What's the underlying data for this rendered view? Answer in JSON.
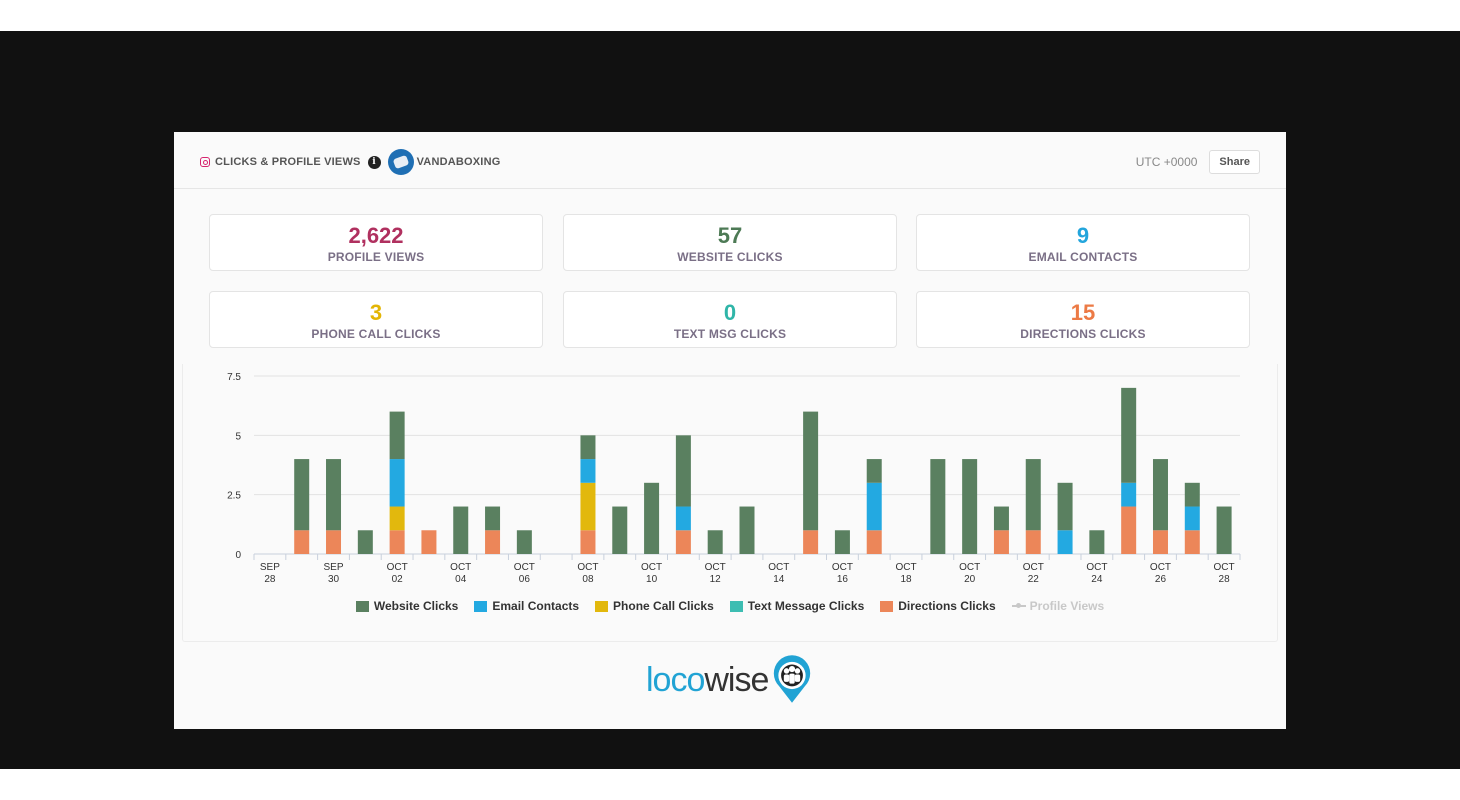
{
  "header": {
    "title": "CLICKS & PROFILE VIEWS",
    "account": "VANDABOXING",
    "timezone": "UTC +0000",
    "share_label": "Share",
    "icons": [
      "instagram-icon",
      "info-icon",
      "avatar"
    ]
  },
  "stats": [
    {
      "value": "2,622",
      "label": "PROFILE VIEWS",
      "color": "#b0305f"
    },
    {
      "value": "57",
      "label": "WEBSITE CLICKS",
      "color": "#4d7a55"
    },
    {
      "value": "9",
      "label": "EMAIL CONTACTS",
      "color": "#23a5dc"
    },
    {
      "value": "3",
      "label": "PHONE CALL CLICKS",
      "color": "#e3b505"
    },
    {
      "value": "0",
      "label": "TEXT MSG CLICKS",
      "color": "#2fb5a8"
    },
    {
      "value": "15",
      "label": "DIRECTIONS CLICKS",
      "color": "#ec7a45"
    }
  ],
  "chart_data": {
    "type": "bar",
    "stacked": true,
    "ylim": [
      0,
      7.5
    ],
    "yticks": [
      "0",
      "2.5",
      "5",
      "7.5"
    ],
    "grid": true,
    "legend_position": "bottom",
    "categories": [
      "Sep 28",
      "Sep 29",
      "Sep 30",
      "Oct 01",
      "Oct 02",
      "Oct 03",
      "Oct 04",
      "Oct 05",
      "Oct 06",
      "Oct 07",
      "Oct 08",
      "Oct 09",
      "Oct 10",
      "Oct 11",
      "Oct 12",
      "Oct 13",
      "Oct 14",
      "Oct 15",
      "Oct 16",
      "Oct 17",
      "Oct 18",
      "Oct 19",
      "Oct 20",
      "Oct 21",
      "Oct 22",
      "Oct 23",
      "Oct 24",
      "Oct 25",
      "Oct 26",
      "Oct 27",
      "Oct 28"
    ],
    "xtick_labels": [
      {
        "month": "SEP",
        "day": "28"
      },
      {
        "month": "SEP",
        "day": "30"
      },
      {
        "month": "OCT",
        "day": "02"
      },
      {
        "month": "OCT",
        "day": "04"
      },
      {
        "month": "OCT",
        "day": "06"
      },
      {
        "month": "OCT",
        "day": "08"
      },
      {
        "month": "OCT",
        "day": "10"
      },
      {
        "month": "OCT",
        "day": "12"
      },
      {
        "month": "OCT",
        "day": "14"
      },
      {
        "month": "OCT",
        "day": "16"
      },
      {
        "month": "OCT",
        "day": "18"
      },
      {
        "month": "OCT",
        "day": "20"
      },
      {
        "month": "OCT",
        "day": "22"
      },
      {
        "month": "OCT",
        "day": "24"
      },
      {
        "month": "OCT",
        "day": "26"
      },
      {
        "month": "OCT",
        "day": "28"
      }
    ],
    "series": [
      {
        "name": "Directions Clicks",
        "color": "#ec8659",
        "values": [
          0,
          1,
          1,
          0,
          1,
          1,
          0,
          1,
          0,
          0,
          1,
          0,
          0,
          1,
          0,
          0,
          0,
          1,
          0,
          1,
          0,
          0,
          0,
          1,
          1,
          0,
          0,
          2,
          1,
          1,
          0
        ]
      },
      {
        "name": "Text Message Clicks",
        "color": "#3dbdb2",
        "values": [
          0,
          0,
          0,
          0,
          0,
          0,
          0,
          0,
          0,
          0,
          0,
          0,
          0,
          0,
          0,
          0,
          0,
          0,
          0,
          0,
          0,
          0,
          0,
          0,
          0,
          0,
          0,
          0,
          0,
          0,
          0
        ]
      },
      {
        "name": "Phone Call Clicks",
        "color": "#e2b80d",
        "values": [
          0,
          0,
          0,
          0,
          1,
          0,
          0,
          0,
          0,
          0,
          2,
          0,
          0,
          0,
          0,
          0,
          0,
          0,
          0,
          0,
          0,
          0,
          0,
          0,
          0,
          0,
          0,
          0,
          0,
          0,
          0
        ]
      },
      {
        "name": "Email Contacts",
        "color": "#23a9e1",
        "values": [
          0,
          0,
          0,
          0,
          2,
          0,
          0,
          0,
          0,
          0,
          1,
          0,
          0,
          1,
          0,
          0,
          0,
          0,
          0,
          2,
          0,
          0,
          0,
          0,
          0,
          1,
          0,
          1,
          0,
          1,
          0
        ]
      },
      {
        "name": "Website Clicks",
        "color": "#5a8060",
        "values": [
          0,
          3,
          3,
          1,
          2,
          0,
          2,
          1,
          1,
          0,
          1,
          2,
          3,
          3,
          1,
          2,
          0,
          5,
          1,
          1,
          0,
          4,
          4,
          1,
          3,
          2,
          1,
          4,
          3,
          1,
          2
        ]
      }
    ],
    "legend": [
      {
        "name": "Website Clicks",
        "color": "#5a8060"
      },
      {
        "name": "Email Contacts",
        "color": "#23a9e1"
      },
      {
        "name": "Phone Call Clicks",
        "color": "#e2b80d"
      },
      {
        "name": "Text Message Clicks",
        "color": "#3dbdb2"
      },
      {
        "name": "Directions Clicks",
        "color": "#ec8659"
      },
      {
        "name": "Profile Views",
        "color": "#c8c8c8",
        "muted": true
      }
    ]
  },
  "branding": {
    "part1": "loco",
    "part2": "wise"
  }
}
